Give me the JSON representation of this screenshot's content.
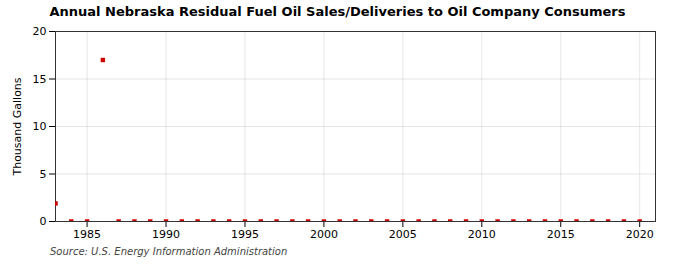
{
  "chart_data": {
    "type": "scatter",
    "title": "Annual Nebraska Residual Fuel Oil Sales/Deliveries to Oil Company Consumers",
    "ylabel": "Thousand Gallons",
    "annotations": [
      "Source: U.S. Energy Information Administration"
    ],
    "x": [
      1983,
      1984,
      1985,
      1986,
      1987,
      1988,
      1989,
      1990,
      1991,
      1992,
      1993,
      1994,
      1995,
      1996,
      1997,
      1998,
      1999,
      2000,
      2001,
      2002,
      2003,
      2004,
      2005,
      2006,
      2007,
      2008,
      2009,
      2010,
      2011,
      2012,
      2013,
      2014,
      2015,
      2016,
      2017,
      2018,
      2019,
      2020
    ],
    "values": [
      1.9,
      0.0,
      0.0,
      17.0,
      0.0,
      0.0,
      0.0,
      0.0,
      0.0,
      0.0,
      0.0,
      0.0,
      0.0,
      0.0,
      0.0,
      0.0,
      0.0,
      0.0,
      0.0,
      0.0,
      0.0,
      0.0,
      0.0,
      0.0,
      0.0,
      0.0,
      0.0,
      0.0,
      0.0,
      0.0,
      0.0,
      0.0,
      0.0,
      0.0,
      0.0,
      0.0,
      0.0,
      0.0
    ],
    "color": "#cc0000",
    "marker": "square",
    "xlim": [
      1983,
      2021
    ],
    "ylim": [
      0,
      20
    ],
    "xticks": [
      1985,
      1990,
      1995,
      2000,
      2005,
      2010,
      2015,
      2020
    ],
    "yticks": [
      0,
      5,
      10,
      15,
      20
    ],
    "grid": true
  }
}
